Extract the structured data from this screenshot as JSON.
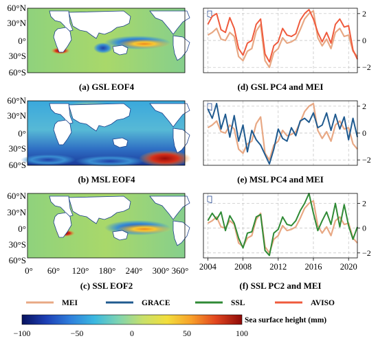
{
  "maps": {
    "lat_labels": [
      "60°N",
      "30°N",
      "0°",
      "30°S",
      "60°S"
    ],
    "lon_labels": [
      "0°",
      "60°",
      "120°",
      "180°",
      "240°",
      "300°",
      "360°"
    ],
    "captions": [
      "(a) GSL EOF4",
      "(b) MSL EOF4",
      "(c) SSL EOF2"
    ]
  },
  "colorbar": {
    "label": "Sea surface height (mm)",
    "ticks": [
      "−100",
      "−50",
      "0",
      "50",
      "100"
    ],
    "colors": [
      "#08125e",
      "#1d3fb5",
      "#2f7fdc",
      "#3bb8e0",
      "#7fd4b0",
      "#c8e06a",
      "#f2de3c",
      "#f8a02a",
      "#e2461f",
      "#8e0a08"
    ]
  },
  "legend": [
    {
      "name": "MEI",
      "color": "#e8a884"
    },
    {
      "name": "GRACE",
      "color": "#1f5a8f"
    },
    {
      "name": "SSL",
      "color": "#2f8a35"
    },
    {
      "name": "AVISO",
      "color": "#ef5a3c"
    }
  ],
  "chart_data": [
    {
      "type": "line",
      "title": "(d) GSL PC4 and MEI",
      "x_range": [
        2003.5,
        2021
      ],
      "ylim": [
        -2.4,
        2.4
      ],
      "yticks": [
        "2",
        "0",
        "−2"
      ],
      "xticks": [],
      "grid": true,
      "series": [
        {
          "name": "MEI",
          "color": "#e8a884",
          "x": [
            2004,
            2004.5,
            2005,
            2005.5,
            2006,
            2006.5,
            2007,
            2007.5,
            2008,
            2008.5,
            2009,
            2009.5,
            2010,
            2010.5,
            2011,
            2011.5,
            2012,
            2012.5,
            2013,
            2013.5,
            2014,
            2014.5,
            2015,
            2015.5,
            2016,
            2016.5,
            2017,
            2017.5,
            2018,
            2018.5,
            2019,
            2019.5,
            2020,
            2020.5,
            2021
          ],
          "y": [
            0.4,
            0.6,
            0.9,
            0.1,
            0,
            0.6,
            0.3,
            -1.2,
            -1.5,
            -0.8,
            -0.6,
            0.7,
            1.2,
            -1.5,
            -2,
            -0.9,
            -0.6,
            0.2,
            -0.2,
            -0.1,
            0.1,
            0.8,
            1.6,
            2,
            2.2,
            0.2,
            -0.4,
            0.1,
            -0.6,
            0.6,
            0.9,
            0.3,
            0.4,
            -0.8,
            -1.2
          ]
        },
        {
          "name": "AVISO",
          "color": "#ef5a3c",
          "x": [
            2004,
            2004.5,
            2005,
            2005.5,
            2006,
            2006.5,
            2007,
            2007.5,
            2008,
            2008.5,
            2009,
            2009.5,
            2010,
            2010.5,
            2011,
            2011.5,
            2012,
            2012.5,
            2013,
            2013.5,
            2014,
            2014.5,
            2015,
            2015.5,
            2016,
            2016.5,
            2017,
            2017.5,
            2018,
            2018.5,
            2019,
            2019.5,
            2020,
            2020.5,
            2021
          ],
          "y": [
            1.2,
            1.8,
            2,
            0.8,
            0.6,
            1.7,
            0.9,
            -0.6,
            -1.1,
            -0.2,
            0,
            1.2,
            1.6,
            -1,
            -1.6,
            -0.4,
            -0.1,
            0.9,
            0.4,
            0.3,
            0.5,
            1.5,
            2,
            2.3,
            1.6,
            0.6,
            -0.1,
            0.6,
            -0.2,
            1.2,
            1.6,
            1,
            1.1,
            -0.7,
            -1.4
          ]
        }
      ]
    },
    {
      "type": "line",
      "title": "(e) MSL PC4 and MEI",
      "x_range": [
        2003.5,
        2021
      ],
      "ylim": [
        -2.4,
        2.4
      ],
      "yticks": [
        "2",
        "0",
        "−2"
      ],
      "xticks": [],
      "grid": true,
      "series": [
        {
          "name": "MEI",
          "color": "#e8a884",
          "x": [
            2004,
            2004.5,
            2005,
            2005.5,
            2006,
            2006.5,
            2007,
            2007.5,
            2008,
            2008.5,
            2009,
            2009.5,
            2010,
            2010.5,
            2011,
            2011.5,
            2012,
            2012.5,
            2013,
            2013.5,
            2014,
            2014.5,
            2015,
            2015.5,
            2016,
            2016.5,
            2017,
            2017.5,
            2018,
            2018.5,
            2019,
            2019.5,
            2020,
            2020.5,
            2021
          ],
          "y": [
            0.4,
            0.6,
            0.9,
            0.1,
            0,
            0.6,
            0.3,
            -1.2,
            -1.5,
            -0.8,
            -0.6,
            0.7,
            1.2,
            -1.5,
            -2,
            -0.9,
            -0.6,
            0.2,
            -0.2,
            -0.1,
            0.1,
            0.8,
            1.6,
            2,
            2.2,
            0.2,
            -0.4,
            0.1,
            -0.6,
            0.6,
            0.9,
            0.3,
            0.4,
            -0.8,
            -1.2
          ]
        },
        {
          "name": "GRACE",
          "color": "#1f5a8f",
          "x": [
            2004,
            2004.5,
            2005,
            2005.5,
            2006,
            2006.5,
            2007,
            2007.5,
            2008,
            2008.5,
            2009,
            2009.5,
            2010,
            2010.5,
            2011,
            2011.5,
            2012,
            2012.5,
            2013,
            2013.5,
            2014,
            2014.5,
            2015,
            2015.5,
            2016,
            2016.5,
            2017,
            2017.5,
            2018,
            2018.5,
            2019,
            2019.5,
            2020,
            2020.5,
            2021
          ],
          "y": [
            1.8,
            1.1,
            2.2,
            0.3,
            1.4,
            -0.3,
            1.3,
            -0.6,
            0.6,
            -1.4,
            0.2,
            -0.5,
            -0.9,
            -1.6,
            -2.3,
            -1.2,
            0.3,
            -0.4,
            -0.6,
            0.4,
            -0.2,
            0.9,
            1.1,
            0.8,
            1.5,
            0.4,
            0.6,
            1.5,
            0.2,
            1.4,
            0.3,
            1.2,
            -0.5,
            1.1,
            -0.3
          ]
        }
      ]
    },
    {
      "type": "line",
      "title": "(f) SSL PC2 and MEI",
      "x_range": [
        2003.5,
        2021
      ],
      "ylim": [
        -2.4,
        2.8
      ],
      "yticks": [
        "2",
        "0",
        "−2"
      ],
      "xticks": [
        "2004",
        "2008",
        "2012",
        "2016",
        "2020"
      ],
      "grid": true,
      "series": [
        {
          "name": "MEI",
          "color": "#e8a884",
          "x": [
            2004,
            2004.5,
            2005,
            2005.5,
            2006,
            2006.5,
            2007,
            2007.5,
            2008,
            2008.5,
            2009,
            2009.5,
            2010,
            2010.5,
            2011,
            2011.5,
            2012,
            2012.5,
            2013,
            2013.5,
            2014,
            2014.5,
            2015,
            2015.5,
            2016,
            2016.5,
            2017,
            2017.5,
            2018,
            2018.5,
            2019,
            2019.5,
            2020,
            2020.5,
            2021
          ],
          "y": [
            0.4,
            0.6,
            0.9,
            0.1,
            0,
            0.6,
            0.3,
            -1.2,
            -1.5,
            -0.8,
            -0.6,
            0.7,
            1.2,
            -1.5,
            -2,
            -0.9,
            -0.6,
            0.2,
            -0.2,
            -0.1,
            0.1,
            0.8,
            1.6,
            2,
            2.2,
            0.2,
            -0.4,
            0.1,
            -0.6,
            0.6,
            0.9,
            0.3,
            0.4,
            -0.8,
            -1.2
          ]
        },
        {
          "name": "SSL",
          "color": "#2f8a35",
          "x": [
            2004,
            2004.5,
            2005,
            2005.5,
            2006,
            2006.5,
            2007,
            2007.5,
            2008,
            2008.5,
            2009,
            2009.5,
            2010,
            2010.5,
            2011,
            2011.5,
            2012,
            2012.5,
            2013,
            2013.5,
            2014,
            2014.5,
            2015,
            2015.5,
            2016,
            2016.5,
            2017,
            2017.5,
            2018,
            2018.5,
            2019,
            2019.5,
            2020,
            2020.5,
            2021
          ],
          "y": [
            0.6,
            1.2,
            0.7,
            1.3,
            -0.2,
            1,
            0.4,
            -0.8,
            -1.6,
            -0.4,
            -0.3,
            0.9,
            1.1,
            -1.8,
            -2.2,
            -0.4,
            -0.1,
            0.9,
            0.3,
            0.2,
            0.6,
            1.4,
            2,
            2.8,
            1.2,
            -0.2,
            0.6,
            1.3,
            0.3,
            2,
            0.1,
            1.9,
            0.2,
            -0.9,
            0.1
          ]
        }
      ]
    }
  ]
}
